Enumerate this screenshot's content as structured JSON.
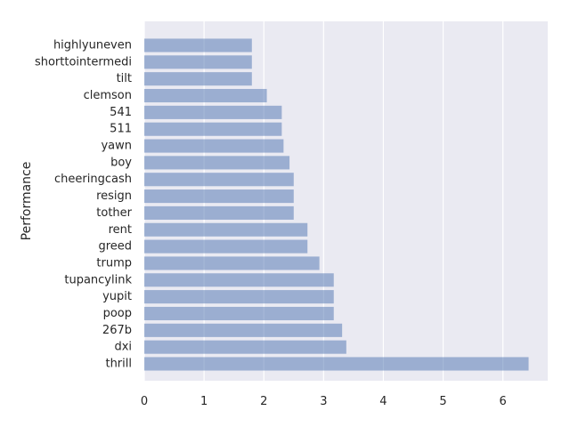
{
  "chart_data": {
    "type": "bar",
    "orientation": "horizontal",
    "title": "",
    "xlabel": "",
    "ylabel": "Performance",
    "xlim": [
      0,
      6.75
    ],
    "xticks": [
      0,
      1,
      2,
      3,
      4,
      5,
      6
    ],
    "grid": true,
    "legend": "none",
    "bar_color": "#4c72b0",
    "bar_opacity": 0.5,
    "background_color": "#eaeaf2",
    "grid_color": "#ffffff",
    "categories": [
      "highlyuneven",
      "shorttointermedi",
      "tilt",
      "clemson",
      "541",
      "511",
      "yawn",
      "boy",
      "cheeringcash",
      "resign",
      "tother",
      "rent",
      "greed",
      "trump",
      "tupancylink",
      "yupit",
      "poop",
      "267b",
      "dxi",
      "thrill"
    ],
    "values": [
      1.8,
      1.8,
      1.8,
      2.05,
      2.3,
      2.3,
      2.33,
      2.43,
      2.5,
      2.5,
      2.5,
      2.73,
      2.73,
      2.93,
      3.17,
      3.17,
      3.17,
      3.31,
      3.38,
      6.43
    ]
  }
}
